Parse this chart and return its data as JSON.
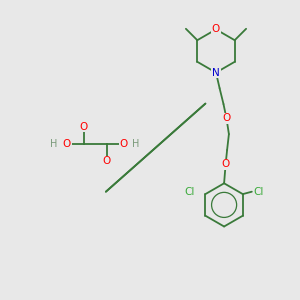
{
  "bg_color": "#e8e8e8",
  "bond_color": "#3a7a3a",
  "O_color": "#ff0000",
  "N_color": "#0000cd",
  "Cl_color": "#3aaa3a",
  "H_color": "#7a9a7a",
  "lw": 1.3,
  "fs": 7.5,
  "figsize": [
    3.0,
    3.0
  ],
  "dpi": 100,
  "xlim": [
    0,
    10
  ],
  "ylim": [
    0,
    10
  ]
}
